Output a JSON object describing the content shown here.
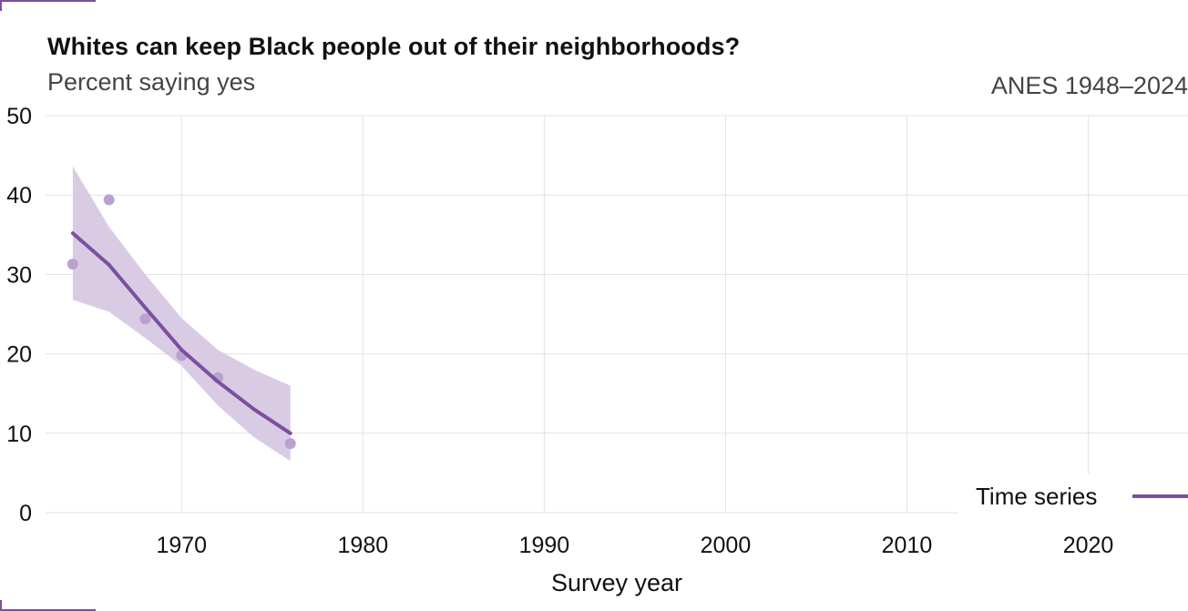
{
  "header": {
    "title": "Whites can keep Black people out of their neighborhoods?",
    "subtitle": "Percent saying yes",
    "source": "ANES 1948–2024"
  },
  "colors": {
    "accent": "#7b4fa0",
    "band": "#d9cbe3",
    "points": "#b9a2cf",
    "grid": "#e3e3e3"
  },
  "chart_data": {
    "type": "line",
    "title": "Whites can keep Black people out of their neighborhoods?",
    "subtitle": "Percent saying yes",
    "xlabel": "Survey year",
    "ylabel": "",
    "xlim": [
      1962.5,
      2025.5
    ],
    "ylim": [
      0,
      50
    ],
    "x_ticks": [
      1970,
      1980,
      1990,
      2000,
      2010,
      2020
    ],
    "y_ticks": [
      0,
      10,
      20,
      30,
      40,
      50
    ],
    "grid": true,
    "legend_position": "bottom-right",
    "series": [
      {
        "name": "Time series",
        "type": "scatter",
        "x": [
          1964,
          1966,
          1968,
          1970,
          1972,
          1976
        ],
        "y": [
          31.3,
          39.4,
          24.4,
          19.8,
          17.0,
          8.7
        ]
      },
      {
        "name": "Time series",
        "type": "line",
        "x": [
          1964,
          1966,
          1968,
          1970,
          1972,
          1974,
          1976
        ],
        "y": [
          35.2,
          31.2,
          25.8,
          20.5,
          16.5,
          13.0,
          10.0
        ],
        "lower": [
          26.8,
          25.3,
          22.0,
          18.5,
          13.5,
          9.5,
          6.5
        ],
        "upper": [
          43.6,
          36.0,
          30.0,
          24.5,
          20.5,
          18.0,
          16.0
        ]
      }
    ]
  },
  "legend": {
    "label": "Time series"
  }
}
